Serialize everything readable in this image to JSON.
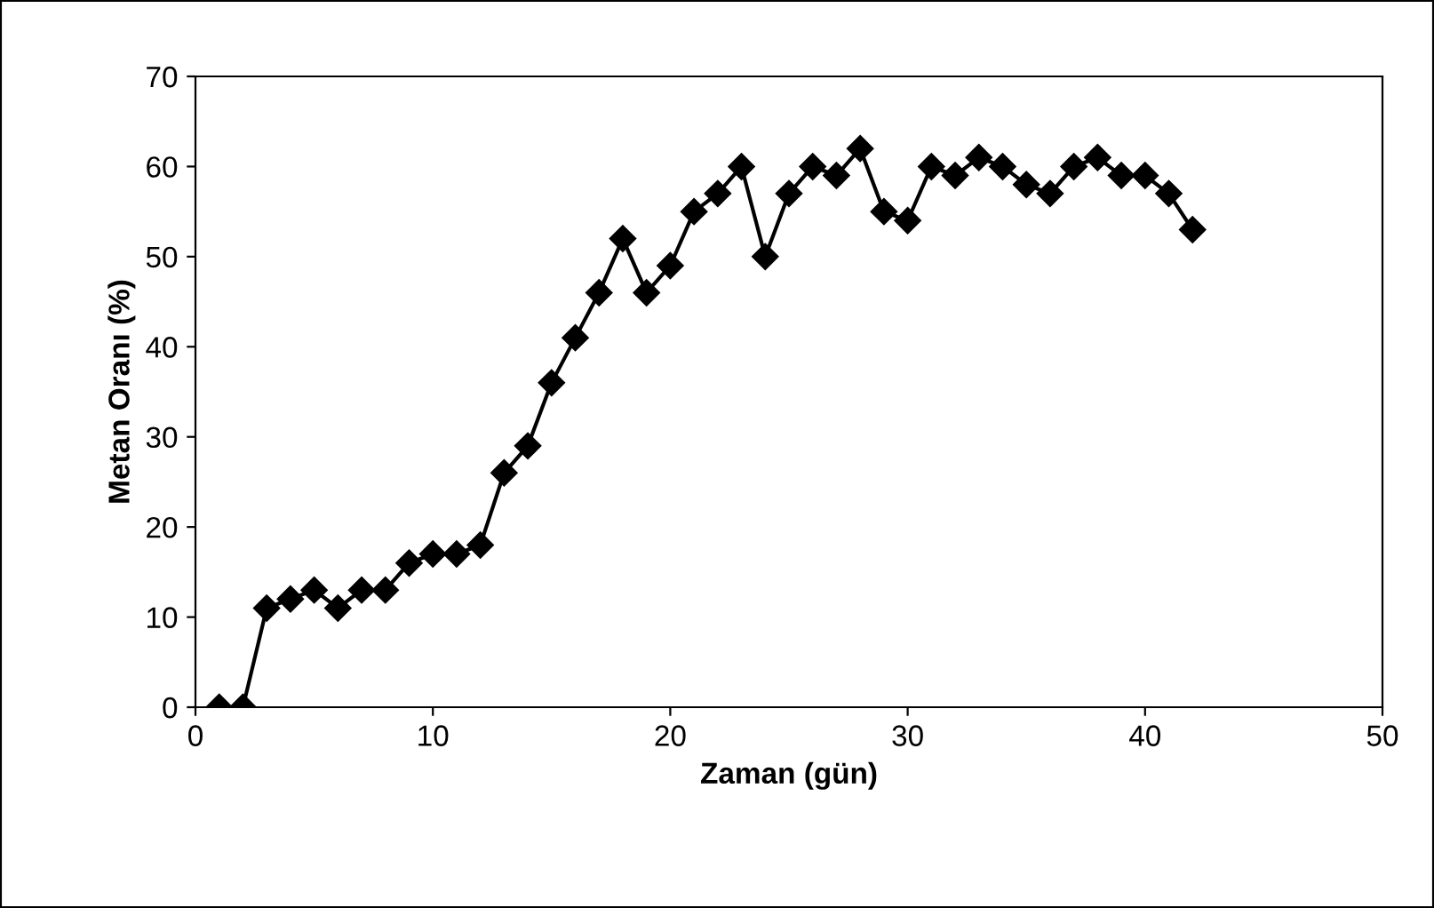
{
  "chart_data": {
    "type": "line",
    "xlabel": "Zaman (gün)",
    "ylabel": "Metan Oranı (%)",
    "x": [
      1,
      2,
      3,
      4,
      5,
      6,
      7,
      8,
      9,
      10,
      11,
      12,
      13,
      14,
      15,
      16,
      17,
      18,
      19,
      20,
      21,
      22,
      23,
      24,
      25,
      26,
      27,
      28,
      29,
      30,
      31,
      32,
      33,
      34,
      35,
      36,
      37,
      38,
      39,
      40,
      41,
      42
    ],
    "series": [
      {
        "color": "#000000",
        "values": [
          0,
          0,
          11,
          12,
          13,
          11,
          13,
          13,
          16,
          17,
          17,
          18,
          26,
          29,
          36,
          41,
          46,
          52,
          46,
          49,
          55,
          57,
          60,
          50,
          57,
          60,
          59,
          62,
          55,
          54,
          60,
          59,
          61,
          60,
          58,
          57,
          60,
          61,
          59,
          59,
          57,
          53
        ]
      }
    ],
    "xlim": [
      0,
      50
    ],
    "xticks": [
      0,
      10,
      20,
      30,
      40,
      50
    ],
    "ylim": [
      0,
      70
    ],
    "yticks": [
      0,
      10,
      20,
      30,
      40,
      50,
      60,
      70
    ],
    "marker": "diamond",
    "line_style": "solid",
    "grid": false,
    "legend": false
  }
}
